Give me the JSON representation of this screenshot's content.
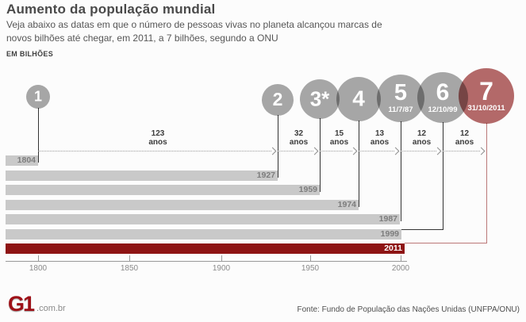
{
  "header": {
    "title": "Aumento da população mundial",
    "subtitle_line1": "Veja abaixo as datas em que o número de pessoas vivas no planeta alcançou marcas de",
    "subtitle_line2": "novos bilhões até chegar, em 2011, a 7 bilhões, segundo a ONU",
    "unit_label": "EM BILHÕES"
  },
  "chart_data": {
    "type": "bar",
    "title": "Aumento da população mundial",
    "unit": "EM BILHÕES",
    "orientation": "horizontal-timeline",
    "grid": false,
    "legend_position": "none",
    "x_axis": {
      "ticks": [
        "1800",
        "1850",
        "1900",
        "1950",
        "2000"
      ],
      "range": [
        1800,
        2011
      ]
    },
    "milestones": [
      {
        "billions": 1,
        "label": "1",
        "year": "1804",
        "date": "",
        "gap_from_previous": ""
      },
      {
        "billions": 2,
        "label": "2",
        "year": "1927",
        "date": "",
        "gap_from_previous": "123 anos"
      },
      {
        "billions": 3,
        "label": "3*",
        "year": "1959",
        "date": "",
        "gap_from_previous": "32 anos"
      },
      {
        "billions": 4,
        "label": "4",
        "year": "1974",
        "date": "",
        "gap_from_previous": "15 anos"
      },
      {
        "billions": 5,
        "label": "5",
        "year": "1987",
        "date": "11/7/87",
        "gap_from_previous": "13 anos"
      },
      {
        "billions": 6,
        "label": "6",
        "year": "1999",
        "date": "12/10/99",
        "gap_from_previous": "12 anos"
      },
      {
        "billions": 7,
        "label": "7",
        "year": "2011",
        "date": "31/10/2011",
        "gap_from_previous": "12 anos"
      }
    ]
  },
  "colors": {
    "circle_gray": "#a8a8a8",
    "circle_red": "#b56a6a",
    "bar_gray": "#c9c9c9",
    "bar_red": "#8e1414",
    "bar_label_gray": "#7d7d7d",
    "bar_label_white": "#ffffff",
    "connector_dark": "#333333",
    "connector_red": "#bb7878"
  },
  "footer": {
    "logo": "G1",
    "logo_suffix": ".com.br",
    "source": "Fonte: Fundo de População das Nações Unidas (UNFPA/ONU)"
  }
}
